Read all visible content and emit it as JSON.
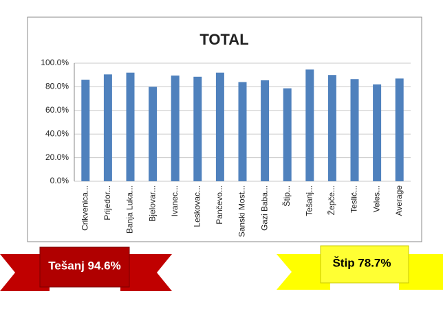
{
  "chart_data": {
    "type": "bar",
    "title": "TOTAL",
    "categories": [
      "Crikvenica...",
      "Prijedor...",
      "Banja Luka...",
      "Bjelovar...",
      "Ivanec...",
      "Leskovac...",
      "Pančevo...",
      "Sanski Most...",
      "Gazi Baba...",
      "Štip...",
      "Tešanj...",
      "Žepče...",
      "Teslić...",
      "Veles...",
      "Average"
    ],
    "values": [
      86,
      90.5,
      92,
      80,
      89.5,
      88.5,
      92,
      84,
      85.5,
      78.7,
      94.6,
      90,
      86.5,
      82,
      87
    ],
    "color": "#4f81bd",
    "ylim": [
      0,
      100
    ],
    "yticks": [
      {
        "value": 0,
        "label": "0.0%"
      },
      {
        "value": 20,
        "label": "20.0%"
      },
      {
        "value": 40,
        "label": "40.0%"
      },
      {
        "value": 60,
        "label": "60.0%"
      },
      {
        "value": 80,
        "label": "80.0%"
      },
      {
        "value": 100,
        "label": "100.0%"
      }
    ],
    "grid": true,
    "annotations": [
      {
        "text": "Tešanj 94.6%"
      },
      {
        "text": "Štip 78.7%"
      }
    ]
  }
}
